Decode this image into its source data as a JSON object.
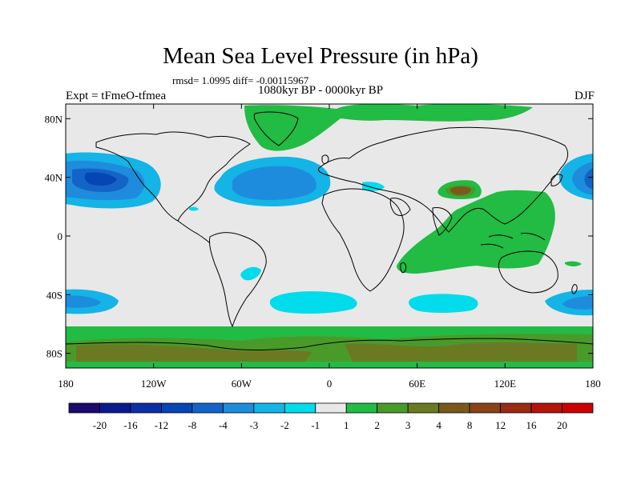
{
  "header": {
    "title": "Mean Sea Level Pressure (in hPa)",
    "subtitle": "rmsd= 1.0995  diff= -0.00115967",
    "period": "1080kyr BP - 0000kyr BP",
    "experiment": "Expt = tFmeO-tfmea",
    "season": "DJF"
  },
  "map_data": {
    "type": "filled-contour-map",
    "projection": "cylindrical-equidistant",
    "variable": "Mean Sea Level Pressure anomaly",
    "units": "hPa",
    "lon_range": [
      -180,
      180
    ],
    "lat_range": [
      -90,
      90
    ],
    "x_ticks": [
      {
        "lon": -180,
        "label": "180"
      },
      {
        "lon": -120,
        "label": "120W"
      },
      {
        "lon": -60,
        "label": "60W"
      },
      {
        "lon": 0,
        "label": "0"
      },
      {
        "lon": 60,
        "label": "60E"
      },
      {
        "lon": 120,
        "label": "120E"
      },
      {
        "lon": 180,
        "label": "180"
      }
    ],
    "y_ticks": [
      {
        "lat": 80,
        "label": "80N"
      },
      {
        "lat": 40,
        "label": "40N"
      },
      {
        "lat": 0,
        "label": "0"
      },
      {
        "lat": -40,
        "label": "40S"
      },
      {
        "lat": -80,
        "label": "80S"
      }
    ]
  },
  "colorbar": {
    "colors": [
      "#1c0a6e",
      "#0a1a8c",
      "#0a2fa6",
      "#0646b4",
      "#1464c8",
      "#1e8cdc",
      "#14b4e6",
      "#00dceb",
      "#e8e8e8",
      "#22bb44",
      "#4a9a2a",
      "#6a7a22",
      "#7a5a1a",
      "#8a4216",
      "#9a2a12",
      "#b4140c",
      "#cc0000"
    ],
    "labels": [
      "-20",
      "-16",
      "-12",
      "-8",
      "-4",
      "-3",
      "-2",
      "-1",
      "1",
      "2",
      "3",
      "4",
      "8",
      "12",
      "16",
      "20"
    ]
  }
}
